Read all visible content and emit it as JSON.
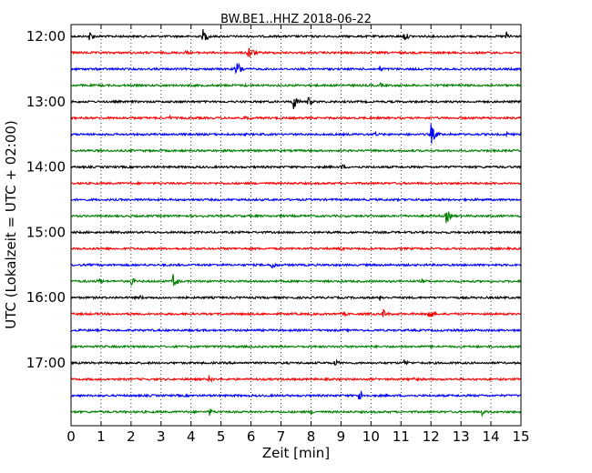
{
  "chart_data": {
    "type": "line",
    "title": "BW.BE1..HHZ 2018-06-22",
    "xlabel": "Zeit  [min]",
    "ylabel": "UTC (Lokalzeit = UTC + 02:00)",
    "xlim": [
      0,
      15
    ],
    "x_ticks": [
      "0",
      "1",
      "2",
      "3",
      "4",
      "5",
      "6",
      "7",
      "8",
      "9",
      "10",
      "11",
      "12",
      "13",
      "14",
      "15"
    ],
    "y_ticks": [
      "12:00",
      "13:00",
      "14:00",
      "15:00",
      "16:00",
      "17:00"
    ],
    "grid": "vertical dotted lines at each minute",
    "trace_interval_minutes": 15,
    "colors": [
      "#000000",
      "#ff0000",
      "#0000ff",
      "#008000"
    ],
    "series": [
      {
        "start": "12:00",
        "color": "#000000",
        "events": [
          [
            0.6,
            7
          ],
          [
            4.4,
            9
          ],
          [
            11.1,
            6
          ],
          [
            14.5,
            6
          ]
        ]
      },
      {
        "start": "12:15",
        "color": "#ff0000",
        "events": [
          [
            3.8,
            3
          ],
          [
            5.9,
            11
          ]
        ]
      },
      {
        "start": "12:30",
        "color": "#0000ff",
        "events": [
          [
            5.5,
            12
          ],
          [
            10.3,
            4
          ]
        ]
      },
      {
        "start": "12:45",
        "color": "#008000",
        "events": [
          [
            5.8,
            2
          ],
          [
            10.3,
            3
          ]
        ]
      },
      {
        "start": "13:00",
        "color": "#000000",
        "events": [
          [
            7.4,
            10
          ],
          [
            7.9,
            6
          ]
        ]
      },
      {
        "start": "13:15",
        "color": "#ff0000",
        "events": [
          [
            3.3,
            3
          ],
          [
            5.8,
            4
          ]
        ]
      },
      {
        "start": "13:30",
        "color": "#0000ff",
        "events": [
          [
            10.1,
            4
          ],
          [
            12.0,
            12
          ],
          [
            14.5,
            3
          ]
        ]
      },
      {
        "start": "13:45",
        "color": "#008000",
        "events": []
      },
      {
        "start": "14:00",
        "color": "#000000",
        "events": [
          [
            9.0,
            4
          ]
        ]
      },
      {
        "start": "14:15",
        "color": "#ff0000",
        "events": []
      },
      {
        "start": "14:30",
        "color": "#0000ff",
        "events": []
      },
      {
        "start": "14:45",
        "color": "#008000",
        "events": [
          [
            4.4,
            2
          ],
          [
            12.5,
            9
          ]
        ]
      },
      {
        "start": "15:00",
        "color": "#000000",
        "events": []
      },
      {
        "start": "15:15",
        "color": "#ff0000",
        "events": [
          [
            9.0,
            3
          ]
        ]
      },
      {
        "start": "15:30",
        "color": "#0000ff",
        "events": [
          [
            6.7,
            6
          ]
        ]
      },
      {
        "start": "15:45",
        "color": "#008000",
        "events": [
          [
            0.9,
            5
          ],
          [
            2.0,
            5
          ],
          [
            3.4,
            9
          ],
          [
            11.7,
            3
          ]
        ]
      },
      {
        "start": "16:00",
        "color": "#000000",
        "events": [
          [
            2.3,
            3
          ],
          [
            10.3,
            4
          ]
        ]
      },
      {
        "start": "16:15",
        "color": "#ff0000",
        "events": [
          [
            9.1,
            3
          ],
          [
            10.4,
            6
          ],
          [
            11.9,
            9
          ]
        ]
      },
      {
        "start": "16:30",
        "color": "#0000ff",
        "events": []
      },
      {
        "start": "16:45",
        "color": "#008000",
        "events": []
      },
      {
        "start": "17:00",
        "color": "#000000",
        "events": [
          [
            8.8,
            5
          ],
          [
            11.1,
            5
          ]
        ]
      },
      {
        "start": "17:15",
        "color": "#ff0000",
        "events": [
          [
            4.6,
            5
          ],
          [
            11.4,
            4
          ]
        ]
      },
      {
        "start": "17:30",
        "color": "#0000ff",
        "events": [
          [
            9.6,
            8
          ]
        ]
      },
      {
        "start": "17:45",
        "color": "#008000",
        "events": [
          [
            4.6,
            5
          ],
          [
            8.0,
            3
          ],
          [
            13.7,
            4
          ]
        ]
      }
    ]
  }
}
